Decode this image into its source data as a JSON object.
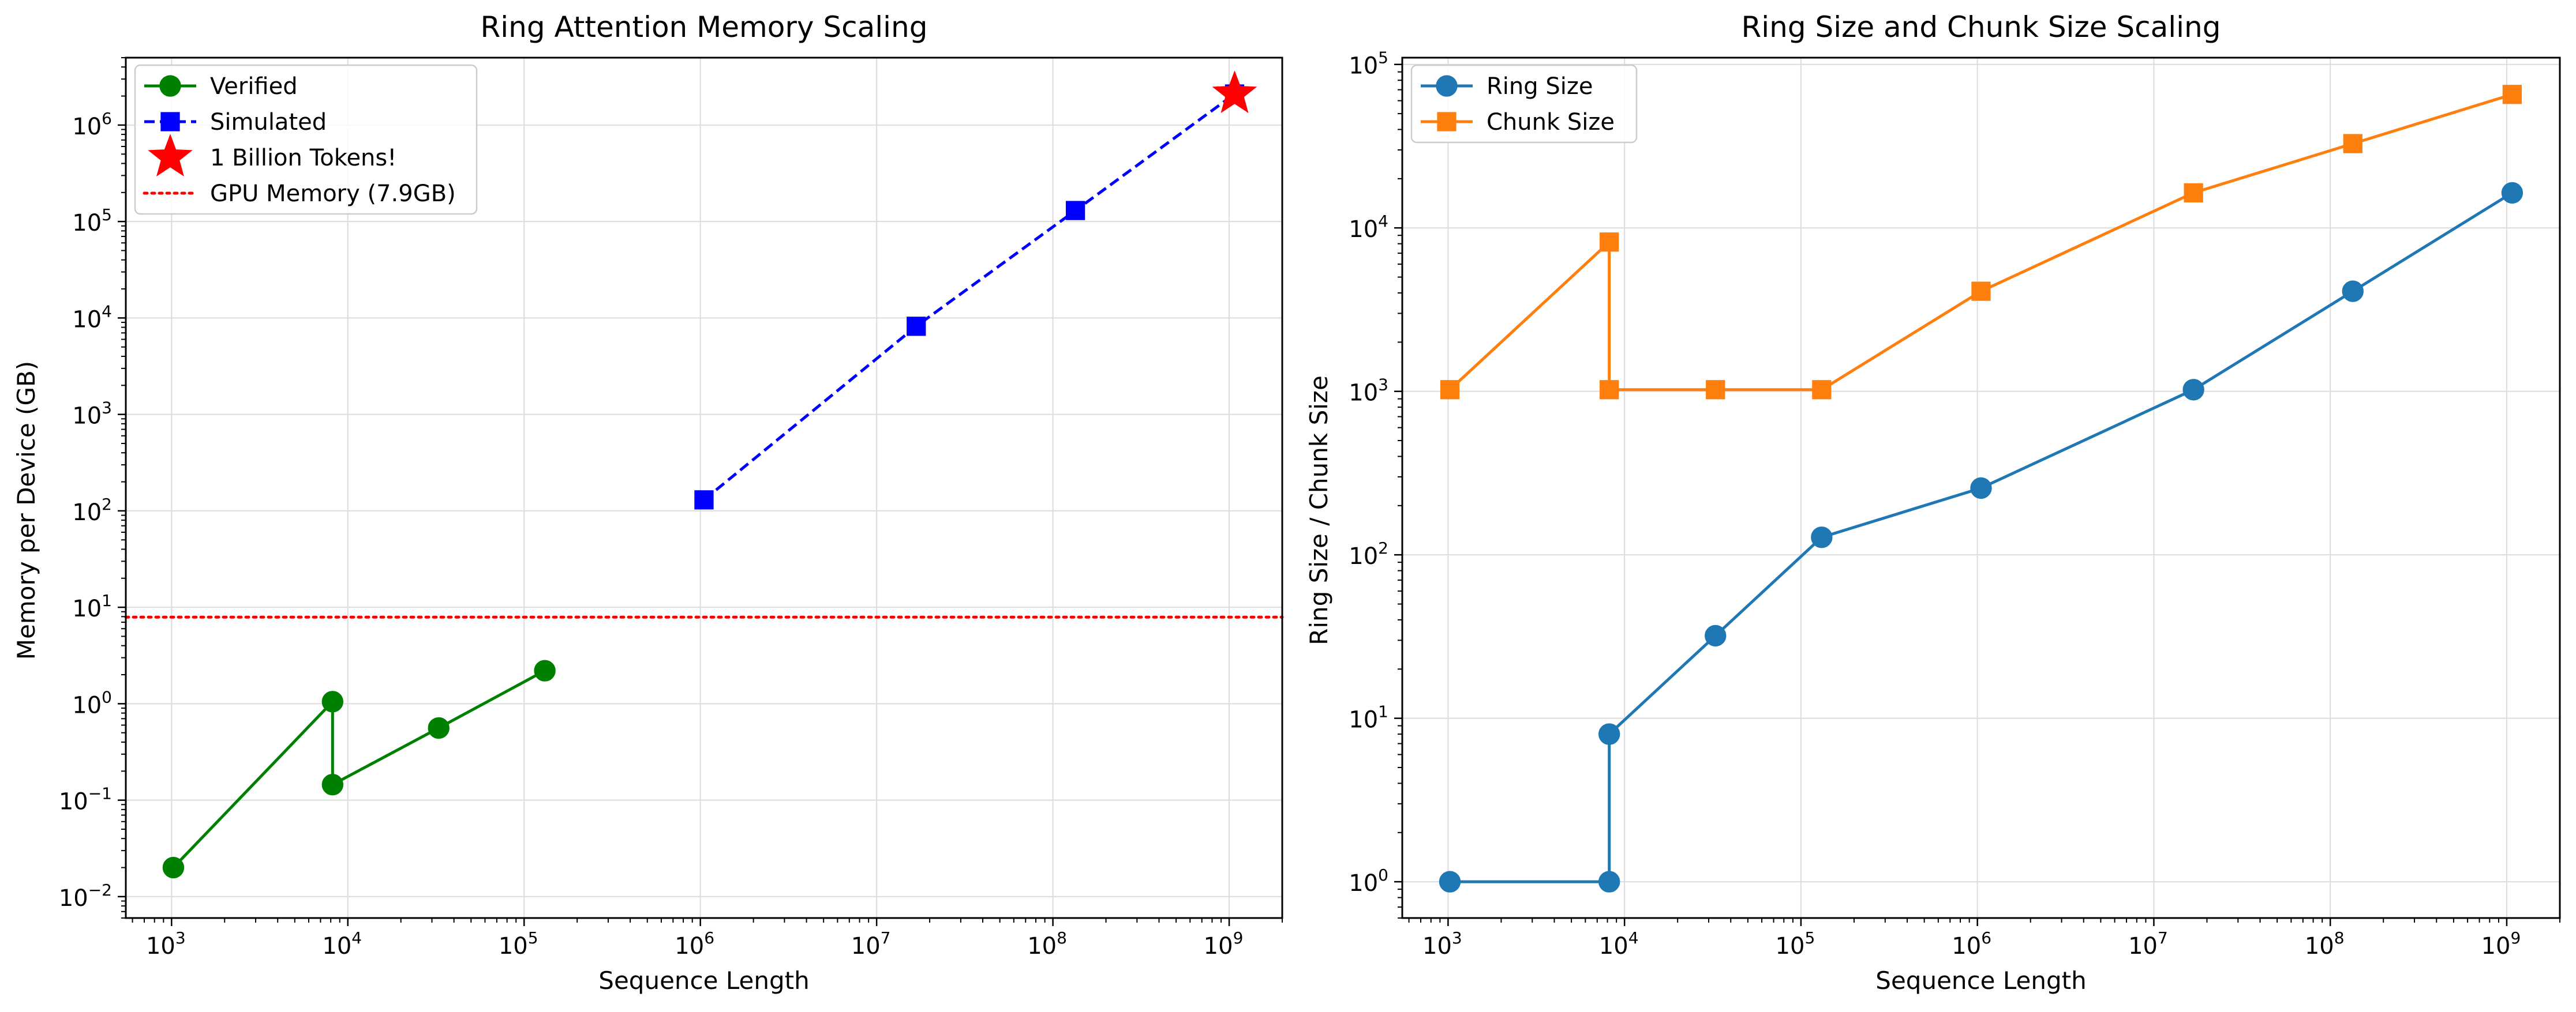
{
  "chart_data": [
    {
      "type": "line",
      "title": "Ring Attention Memory Scaling",
      "xlabel": "Sequence Length",
      "ylabel": "Memory per Device (GB)",
      "xscale": "log",
      "yscale": "log",
      "xlim": [
        550,
        2000000000
      ],
      "ylim": [
        0.006,
        5000000
      ],
      "grid": true,
      "legend_position": "top-left",
      "x_ticks": [
        "10^3",
        "10^4",
        "10^5",
        "10^6",
        "10^7",
        "10^8",
        "10^9"
      ],
      "y_ticks": [
        "10^-2",
        "10^-1",
        "10^0",
        "10^1",
        "10^2",
        "10^3",
        "10^4",
        "10^5",
        "10^6"
      ],
      "series": [
        {
          "name": "Verified",
          "color": "#008000",
          "line": "solid",
          "marker": "circle",
          "x": [
            1024,
            8192,
            8192,
            32768,
            131072
          ],
          "y": [
            0.02,
            1.05,
            0.145,
            0.56,
            2.2
          ]
        },
        {
          "name": "Simulated",
          "color": "#0000ff",
          "line": "dashed",
          "marker": "square",
          "x": [
            1048576,
            16777216,
            134217728,
            1073741824
          ],
          "y": [
            130,
            8200,
            130000,
            2100000
          ]
        },
        {
          "name": "1 Billion Tokens!",
          "color": "#ff0000",
          "line": "none",
          "marker": "star",
          "x": [
            1073741824
          ],
          "y": [
            2100000
          ]
        }
      ],
      "hlines": [
        {
          "name": "GPU Memory (7.9GB)",
          "y": 7.9,
          "color": "#ff0000",
          "style": "dotted"
        }
      ]
    },
    {
      "type": "line",
      "title": "Ring Size and Chunk Size Scaling",
      "xlabel": "Sequence Length",
      "ylabel": "Ring Size / Chunk Size",
      "xscale": "log",
      "yscale": "log",
      "xlim": [
        550,
        2000000000
      ],
      "ylim": [
        0.6,
        110000
      ],
      "grid": true,
      "legend_position": "top-left",
      "x_ticks": [
        "10^3",
        "10^4",
        "10^5",
        "10^6",
        "10^7",
        "10^8",
        "10^9"
      ],
      "y_ticks": [
        "10^0",
        "10^1",
        "10^2",
        "10^3",
        "10^4",
        "10^5"
      ],
      "series": [
        {
          "name": "Ring Size",
          "color": "#1f77b4",
          "line": "solid",
          "marker": "circle",
          "x": [
            1024,
            8192,
            8192,
            32768,
            131072,
            1048576,
            16777216,
            134217728,
            1073741824
          ],
          "y": [
            1,
            1,
            8,
            32,
            128,
            256,
            1024,
            4096,
            16384
          ]
        },
        {
          "name": "Chunk Size",
          "color": "#ff7f0e",
          "line": "solid",
          "marker": "square",
          "x": [
            1024,
            8192,
            8192,
            32768,
            131072,
            1048576,
            16777216,
            134217728,
            1073741824
          ],
          "y": [
            1024,
            8192,
            1024,
            1024,
            1024,
            4096,
            16384,
            32768,
            65536
          ]
        }
      ]
    }
  ]
}
